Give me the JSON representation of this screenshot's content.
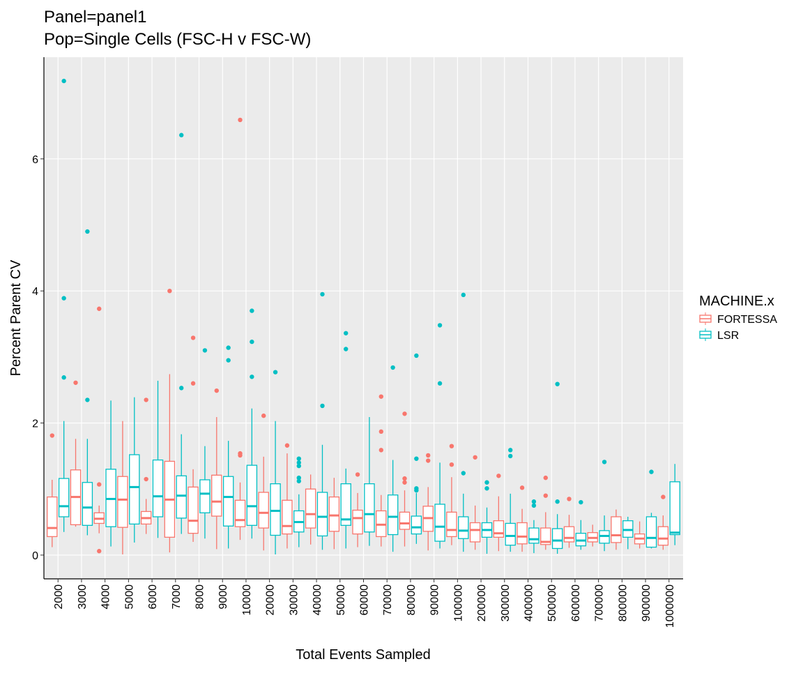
{
  "chart_data": {
    "type": "boxplot",
    "title": "Panel=panel1",
    "subtitle": "Pop=Single Cells (FSC-H v FSC-W)",
    "x_label": "Total Events Sampled",
    "y_label": "Percent Parent CV",
    "legend_title": "MACHINE.x",
    "legend_position": "right",
    "grid": true,
    "categories": [
      "2000",
      "3000",
      "4000",
      "5000",
      "6000",
      "7000",
      "8000",
      "9000",
      "10000",
      "20000",
      "30000",
      "40000",
      "50000",
      "60000",
      "70000",
      "80000",
      "90000",
      "100000",
      "200000",
      "300000",
      "400000",
      "500000",
      "600000",
      "700000",
      "800000",
      "900000",
      "1000000"
    ],
    "ylim": [
      -0.36,
      7.54
    ],
    "yticks": [
      0,
      2,
      4,
      6
    ],
    "series": [
      {
        "name": "FORTESSA",
        "color": "#f8766d",
        "low": [
          0.12,
          0.43,
          0.33,
          0.01,
          0.32,
          0.04,
          0.2,
          0.09,
          0.23,
          0.07,
          0.1,
          0.16,
          0.09,
          0.12,
          0.13,
          0.13,
          0.07,
          0.15,
          0.08,
          0.06,
          0.05,
          0.08,
          0.11,
          0.13,
          0.08,
          0.1,
          0.08
        ],
        "q1": [
          0.28,
          0.46,
          0.48,
          0.42,
          0.47,
          0.27,
          0.33,
          0.59,
          0.43,
          0.41,
          0.32,
          0.41,
          0.36,
          0.32,
          0.28,
          0.39,
          0.36,
          0.28,
          0.2,
          0.27,
          0.17,
          0.16,
          0.2,
          0.2,
          0.19,
          0.17,
          0.15
        ],
        "median": [
          0.41,
          0.88,
          0.55,
          0.84,
          0.56,
          0.84,
          0.52,
          0.81,
          0.53,
          0.64,
          0.44,
          0.62,
          0.6,
          0.56,
          0.46,
          0.48,
          0.56,
          0.38,
          0.38,
          0.33,
          0.28,
          0.2,
          0.26,
          0.26,
          0.3,
          0.25,
          0.25
        ],
        "q3": [
          0.88,
          1.29,
          0.64,
          1.19,
          0.66,
          1.42,
          1.03,
          1.21,
          0.83,
          0.95,
          0.83,
          1.0,
          0.88,
          0.68,
          0.67,
          0.65,
          0.74,
          0.65,
          0.49,
          0.52,
          0.49,
          0.41,
          0.43,
          0.34,
          0.58,
          0.32,
          0.43
        ],
        "high": [
          1.14,
          1.76,
          0.75,
          2.03,
          0.85,
          2.74,
          1.3,
          2.09,
          1.1,
          1.49,
          1.54,
          1.22,
          1.17,
          0.94,
          0.91,
          0.98,
          1.03,
          1.18,
          0.75,
          0.89,
          0.7,
          0.65,
          0.61,
          0.46,
          0.69,
          0.51,
          0.6
        ],
        "outliers": [
          [
            1.81
          ],
          [
            2.61
          ],
          [
            0.06,
            1.07,
            3.73
          ],
          [],
          [
            1.15,
            2.35
          ],
          [
            4.0
          ],
          [
            2.6,
            3.29
          ],
          [
            2.49
          ],
          [
            1.51,
            1.54,
            6.59
          ],
          [
            2.11
          ],
          [
            1.66
          ],
          [],
          [],
          [
            1.22
          ],
          [
            1.59,
            1.87,
            2.4
          ],
          [
            1.1,
            1.16,
            2.14
          ],
          [
            1.43,
            1.51
          ],
          [
            1.37,
            1.65
          ],
          [
            1.48
          ],
          [
            1.2
          ],
          [
            1.02
          ],
          [
            0.9,
            1.17
          ],
          [
            0.85
          ],
          [],
          [],
          [],
          [
            0.88
          ]
        ]
      },
      {
        "name": "LSR",
        "color": "#00bfc4",
        "low": [
          0.35,
          0.3,
          0.13,
          0.19,
          0.26,
          0.32,
          0.25,
          0.1,
          0.25,
          0.01,
          0.12,
          0.08,
          0.1,
          0.14,
          0.05,
          0.17,
          0.1,
          0.05,
          0.02,
          0.05,
          0.03,
          0.02,
          0.08,
          0.06,
          0.09,
          0.1,
          0.15
        ],
        "q1": [
          0.58,
          0.45,
          0.43,
          0.47,
          0.58,
          0.56,
          0.64,
          0.44,
          0.45,
          0.3,
          0.35,
          0.29,
          0.45,
          0.35,
          0.31,
          0.32,
          0.21,
          0.25,
          0.27,
          0.15,
          0.18,
          0.1,
          0.14,
          0.18,
          0.27,
          0.12,
          0.31
        ],
        "median": [
          0.74,
          0.72,
          0.85,
          1.03,
          0.89,
          0.9,
          0.93,
          0.88,
          0.74,
          0.67,
          0.5,
          0.58,
          0.54,
          0.62,
          0.58,
          0.42,
          0.43,
          0.37,
          0.38,
          0.29,
          0.24,
          0.22,
          0.22,
          0.29,
          0.38,
          0.26,
          0.34
        ],
        "q3": [
          1.16,
          1.1,
          1.3,
          1.52,
          1.44,
          1.2,
          1.14,
          1.19,
          1.36,
          1.08,
          0.67,
          0.95,
          1.08,
          1.08,
          0.91,
          0.59,
          0.77,
          0.58,
          0.49,
          0.48,
          0.41,
          0.4,
          0.33,
          0.37,
          0.52,
          0.58,
          1.11
        ],
        "high": [
          2.03,
          1.76,
          2.34,
          2.39,
          2.64,
          1.83,
          1.65,
          1.73,
          2.22,
          2.03,
          0.92,
          1.67,
          1.31,
          2.09,
          1.44,
          0.94,
          1.4,
          0.93,
          0.72,
          0.93,
          0.53,
          0.62,
          0.53,
          0.6,
          0.58,
          0.64,
          1.38
        ],
        "outliers": [
          [
            2.69,
            3.89,
            7.18
          ],
          [
            2.35,
            4.9
          ],
          [],
          [],
          [],
          [
            2.53,
            6.36
          ],
          [
            3.1
          ],
          [
            2.95,
            3.14
          ],
          [
            2.7,
            3.23,
            3.7
          ],
          [
            2.77
          ],
          [
            1.12,
            1.17,
            1.35,
            1.4,
            1.46
          ],
          [
            2.26,
            3.95
          ],
          [
            3.12,
            3.36
          ],
          [],
          [
            2.84
          ],
          [
            0.98,
            1.01,
            1.46,
            3.02
          ],
          [
            2.6,
            3.48
          ],
          [
            1.24,
            3.94
          ],
          [
            1.01,
            1.1
          ],
          [
            1.5,
            1.59
          ],
          [
            0.75,
            0.81
          ],
          [
            0.81,
            2.59
          ],
          [
            0.8
          ],
          [
            1.41
          ],
          [],
          [
            1.26
          ],
          []
        ]
      }
    ]
  }
}
